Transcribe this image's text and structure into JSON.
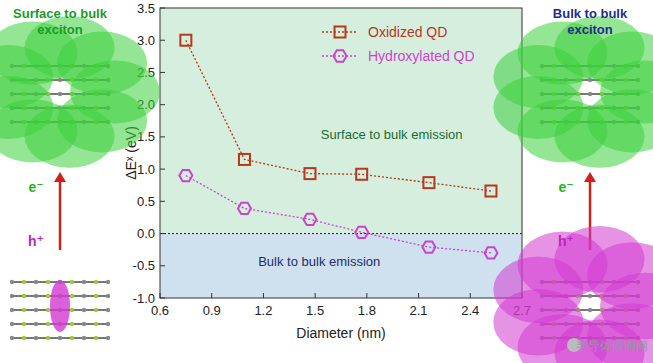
{
  "chart_data": {
    "type": "line",
    "xlabel": "Diameter (nm)",
    "ylabel": "ΔEˣ (eV)",
    "x": [
      0.75,
      1.09,
      1.47,
      1.77,
      2.16,
      2.52
    ],
    "series": [
      {
        "name": "Oxidized QD",
        "color": "#b5391b",
        "marker": "square",
        "line_style": "dotted",
        "values": [
          3.0,
          1.15,
          0.93,
          0.92,
          0.79,
          0.66
        ]
      },
      {
        "name": "Hydroxylated QD",
        "color": "#cc44cc",
        "marker": "hexagon",
        "line_style": "dotted",
        "values": [
          0.9,
          0.39,
          0.22,
          0.02,
          -0.21,
          -0.3
        ]
      }
    ],
    "xlim": [
      0.6,
      2.7
    ],
    "xticks": [
      0.6,
      0.9,
      1.2,
      1.5,
      1.8,
      2.1,
      2.4,
      2.7
    ],
    "ylim": [
      -1.0,
      3.5
    ],
    "yticks": [
      {
        "value": -1.0,
        "label": "-1.0"
      },
      -0.5,
      {
        "value": 0.0,
        "label": "0.0"
      },
      0.5,
      {
        "value": 1.0,
        "label": "1.0"
      },
      1.5,
      {
        "value": 2.0,
        "label": "2.0"
      },
      2.5,
      {
        "value": 3.0,
        "label": "3.0"
      },
      3.5
    ],
    "threshold": 0,
    "regions": [
      "Surface to bulk emission",
      "Bulk to bulk emission"
    ],
    "left_panel": {
      "title": "Surface to bulk exciton",
      "electron": "e⁻",
      "hole": "h⁺"
    },
    "right_panel": {
      "title": "Bulk to bulk exciton",
      "electron": "e⁻",
      "hole": "h⁺"
    },
    "watermark": "半导体照明网",
    "legend": "upper right",
    "grid": false
  }
}
